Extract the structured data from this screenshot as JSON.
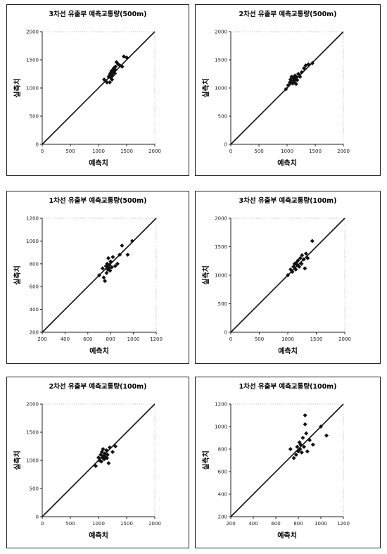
{
  "chart_data": [
    {
      "type": "scatter",
      "title": "3차선 유출부 예측교통량(500m)",
      "xlabel": "예측치",
      "ylabel": "실측치",
      "xlim": [
        0,
        2000
      ],
      "ylim": [
        0,
        2000
      ],
      "xticks": [
        "0",
        "500",
        "1000",
        "1500",
        "2000"
      ],
      "yticks": [
        "0",
        "500",
        "1000",
        "1500",
        "2000"
      ],
      "tickvals": [
        0,
        500,
        1000,
        1500,
        2000
      ],
      "reference_line": "y = x",
      "points": [
        [
          1100,
          1150
        ],
        [
          1150,
          1100
        ],
        [
          1180,
          1200
        ],
        [
          1200,
          1230
        ],
        [
          1210,
          1260
        ],
        [
          1220,
          1180
        ],
        [
          1230,
          1300
        ],
        [
          1240,
          1280
        ],
        [
          1250,
          1220
        ],
        [
          1260,
          1330
        ],
        [
          1270,
          1350
        ],
        [
          1280,
          1300
        ],
        [
          1290,
          1260
        ],
        [
          1300,
          1380
        ],
        [
          1320,
          1460
        ],
        [
          1350,
          1420
        ],
        [
          1380,
          1400
        ],
        [
          1420,
          1380
        ],
        [
          1450,
          1560
        ],
        [
          1500,
          1540
        ],
        [
          1200,
          1100
        ],
        [
          1240,
          1150
        ],
        [
          1300,
          1320
        ]
      ]
    },
    {
      "type": "scatter",
      "title": "2차선 유출부 예측교통량(500m)",
      "xlabel": "예측치",
      "ylabel": "실측치",
      "xlim": [
        0,
        2000
      ],
      "ylim": [
        0,
        2000
      ],
      "xticks": [
        "0",
        "500",
        "1000",
        "1500",
        "2000"
      ],
      "yticks": [
        "0",
        "500",
        "1000",
        "1500",
        "2000"
      ],
      "tickvals": [
        0,
        500,
        1000,
        1500,
        2000
      ],
      "reference_line": "y = x",
      "points": [
        [
          980,
          980
        ],
        [
          1020,
          1050
        ],
        [
          1050,
          1100
        ],
        [
          1060,
          1150
        ],
        [
          1080,
          1200
        ],
        [
          1090,
          1120
        ],
        [
          1100,
          1080
        ],
        [
          1110,
          1180
        ],
        [
          1120,
          1130
        ],
        [
          1130,
          1100
        ],
        [
          1140,
          1220
        ],
        [
          1150,
          1150
        ],
        [
          1160,
          1070
        ],
        [
          1170,
          1190
        ],
        [
          1180,
          1140
        ],
        [
          1200,
          1250
        ],
        [
          1230,
          1200
        ],
        [
          1260,
          1280
        ],
        [
          1300,
          1350
        ],
        [
          1330,
          1400
        ],
        [
          1380,
          1420
        ],
        [
          1450,
          1440
        ]
      ]
    },
    {
      "type": "scatter",
      "title": "1차선 유출부 예측교통량(500m)",
      "xlabel": "예측치",
      "ylabel": "실측치",
      "xlim": [
        200,
        1200
      ],
      "ylim": [
        200,
        1200
      ],
      "xticks": [
        "200",
        "400",
        "600",
        "800",
        "1000",
        "1200"
      ],
      "yticks": [
        "200",
        "400",
        "600",
        "800",
        "1000",
        "1200"
      ],
      "tickvals": [
        200,
        400,
        600,
        800,
        1000,
        1200
      ],
      "reference_line": "y = x",
      "points": [
        [
          700,
          700
        ],
        [
          730,
          760
        ],
        [
          740,
          680
        ],
        [
          750,
          650
        ],
        [
          760,
          780
        ],
        [
          765,
          720
        ],
        [
          770,
          800
        ],
        [
          775,
          750
        ],
        [
          780,
          850
        ],
        [
          785,
          760
        ],
        [
          790,
          790
        ],
        [
          795,
          740
        ],
        [
          800,
          820
        ],
        [
          810,
          770
        ],
        [
          820,
          860
        ],
        [
          840,
          780
        ],
        [
          860,
          800
        ],
        [
          880,
          880
        ],
        [
          900,
          960
        ],
        [
          950,
          880
        ],
        [
          990,
          1000
        ]
      ]
    },
    {
      "type": "scatter",
      "title": "3차선 유출부 예측교통량(100m)",
      "xlabel": "예측치",
      "ylabel": "실측치",
      "xlim": [
        0,
        2000
      ],
      "ylim": [
        0,
        2000
      ],
      "xticks": [
        "0",
        "500",
        "1000",
        "1500",
        "2000"
      ],
      "yticks": [
        "0",
        "500",
        "1000",
        "1500",
        "2000"
      ],
      "tickvals": [
        0,
        500,
        1000,
        1500,
        2000
      ],
      "reference_line": "y = x",
      "points": [
        [
          1000,
          1000
        ],
        [
          1050,
          1100
        ],
        [
          1080,
          1060
        ],
        [
          1100,
          1150
        ],
        [
          1120,
          1200
        ],
        [
          1140,
          1100
        ],
        [
          1150,
          1220
        ],
        [
          1160,
          1180
        ],
        [
          1180,
          1260
        ],
        [
          1200,
          1150
        ],
        [
          1220,
          1300
        ],
        [
          1240,
          1200
        ],
        [
          1250,
          1350
        ],
        [
          1280,
          1280
        ],
        [
          1300,
          1120
        ],
        [
          1320,
          1380
        ],
        [
          1350,
          1300
        ],
        [
          1430,
          1600
        ]
      ]
    },
    {
      "type": "scatter",
      "title": "2차선 유출부 예측교통량(100m)",
      "xlabel": "예측치",
      "ylabel": "실측치",
      "xlim": [
        0,
        2000
      ],
      "ylim": [
        0,
        2000
      ],
      "xticks": [
        "0",
        "500",
        "1000",
        "1500",
        "2000"
      ],
      "yticks": [
        "0",
        "500",
        "1000",
        "1500",
        "2000"
      ],
      "tickvals": [
        0,
        500,
        1000,
        1500,
        2000
      ],
      "reference_line": "y = x",
      "points": [
        [
          950,
          900
        ],
        [
          1000,
          1050
        ],
        [
          1020,
          1000
        ],
        [
          1040,
          1100
        ],
        [
          1050,
          980
        ],
        [
          1060,
          1150
        ],
        [
          1070,
          1050
        ],
        [
          1080,
          1200
        ],
        [
          1090,
          1080
        ],
        [
          1100,
          1020
        ],
        [
          1110,
          1120
        ],
        [
          1120,
          1060
        ],
        [
          1140,
          1180
        ],
        [
          1150,
          1040
        ],
        [
          1160,
          1100
        ],
        [
          1180,
          950
        ],
        [
          1200,
          1230
        ],
        [
          1250,
          1150
        ],
        [
          1300,
          1250
        ]
      ]
    },
    {
      "type": "scatter",
      "title": "1차선 유출부 예측교통량(100m)",
      "xlabel": "예측치",
      "ylabel": "실측치",
      "xlim": [
        200,
        1200
      ],
      "ylim": [
        200,
        1200
      ],
      "xticks": [
        "200",
        "400",
        "600",
        "800",
        "1000",
        "1200"
      ],
      "yticks": [
        "200",
        "400",
        "600",
        "800",
        "1000",
        "1200"
      ],
      "tickvals": [
        200,
        400,
        600,
        800,
        1000,
        1200
      ],
      "reference_line": "y = x",
      "points": [
        [
          730,
          800
        ],
        [
          760,
          720
        ],
        [
          780,
          750
        ],
        [
          790,
          820
        ],
        [
          800,
          780
        ],
        [
          810,
          860
        ],
        [
          815,
          800
        ],
        [
          820,
          840
        ],
        [
          830,
          770
        ],
        [
          840,
          900
        ],
        [
          850,
          820
        ],
        [
          860,
          1100
        ],
        [
          870,
          940
        ],
        [
          880,
          780
        ],
        [
          900,
          880
        ],
        [
          930,
          840
        ],
        [
          1000,
          1000
        ],
        [
          1050,
          920
        ],
        [
          860,
          1020
        ]
      ]
    }
  ]
}
